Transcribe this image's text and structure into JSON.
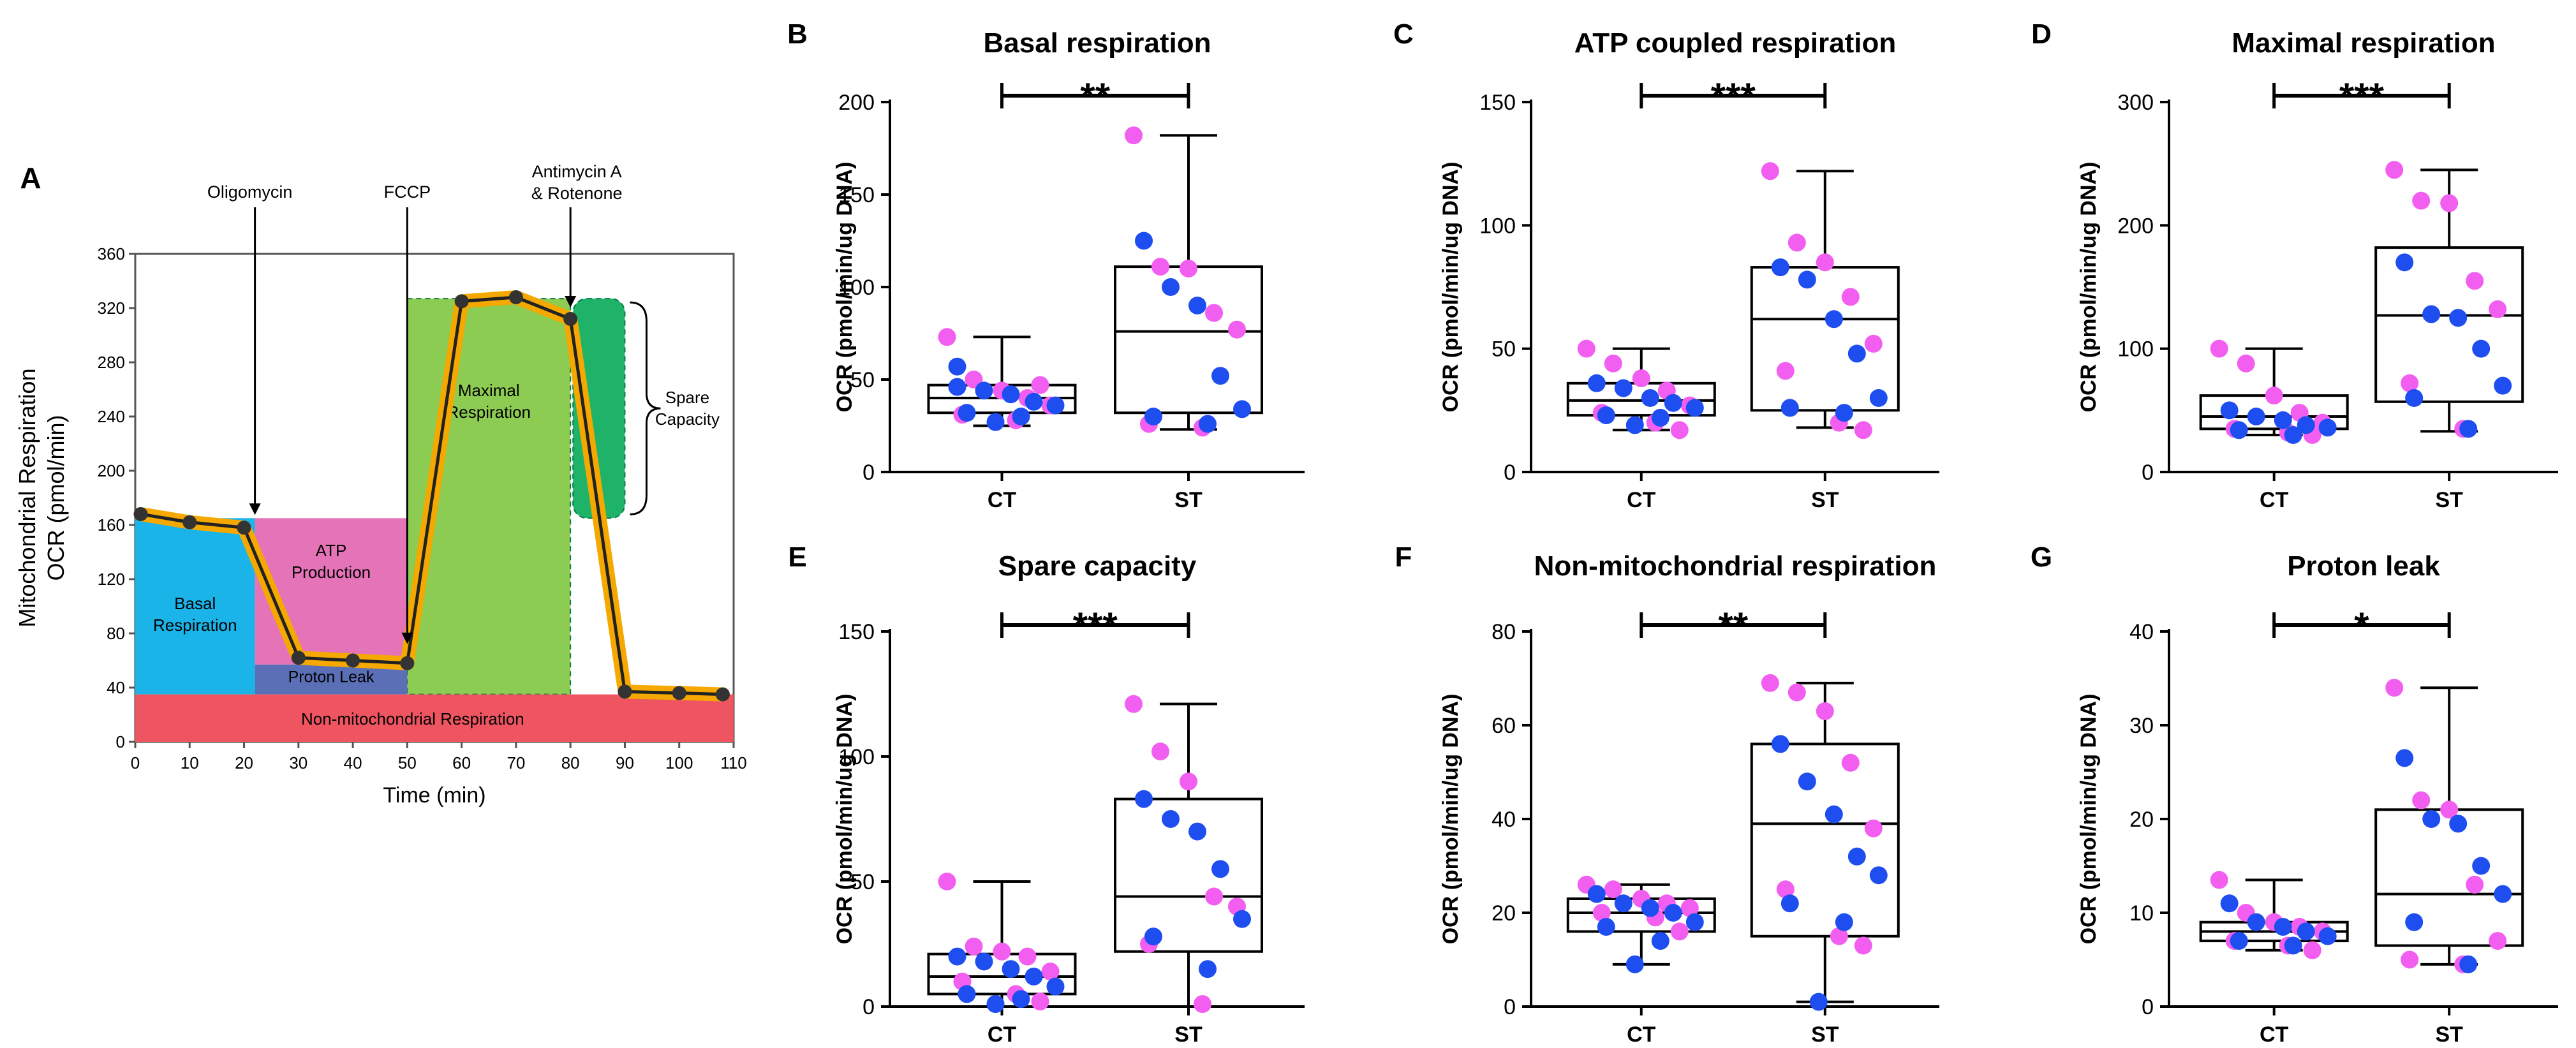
{
  "chart_data": [
    {
      "panel": "A",
      "type": "line",
      "ylabel_line1": "Mitochondrial Respiration",
      "ylabel_line2": "OCR (pmol/min)",
      "xlabel": "Time (min)",
      "xlim": [
        0,
        110
      ],
      "ylim": [
        0,
        360
      ],
      "xticks": [
        0,
        10,
        20,
        30,
        40,
        50,
        60,
        70,
        80,
        90,
        100,
        110
      ],
      "yticks": [
        0,
        40,
        80,
        120,
        160,
        200,
        240,
        280,
        320,
        360
      ],
      "x": [
        1,
        10,
        20,
        30,
        40,
        50,
        60,
        70,
        80,
        90,
        100,
        108
      ],
      "y": [
        168,
        162,
        158,
        62,
        60,
        58,
        325,
        328,
        312,
        37,
        36,
        35
      ],
      "injections": [
        {
          "label": "Oligomycin",
          "x": 22
        },
        {
          "label": "FCCP",
          "x": 50
        },
        {
          "label_line1": "Antimycin A",
          "label_line2": "& Rotenone",
          "x": 80
        }
      ],
      "regions": {
        "basal": {
          "line1": "Basal",
          "line2": "Respiration",
          "x": [
            0,
            22
          ],
          "y": [
            35,
            165
          ],
          "color": "#1ab4e8"
        },
        "atp": {
          "line1": "ATP",
          "line2": "Production",
          "x": [
            22,
            50
          ],
          "y": [
            57,
            165
          ],
          "color": "#e573b8"
        },
        "proton_leak": {
          "label": "Proton Leak",
          "x": [
            22,
            50
          ],
          "y": [
            35,
            57
          ],
          "color": "#5b6fb7"
        },
        "maximal": {
          "line1": "Maximal",
          "line2": "Respiration",
          "x": [
            50,
            80
          ],
          "y": [
            35,
            327
          ],
          "color": "#8dcc52"
        },
        "spare": {
          "line1": "Spare",
          "line2": "Capacity",
          "x": [
            80,
            90
          ],
          "y": [
            165,
            327
          ],
          "color": "#1fb36a"
        },
        "non_mito": {
          "label": "Non-mitochondrial Respiration",
          "x": [
            0,
            110
          ],
          "y": [
            0,
            35
          ],
          "color": "#ef5561"
        }
      },
      "line_color": "#f5a800"
    },
    {
      "panel": "B",
      "type": "box",
      "title": "Basal respiration",
      "ylabel": "OCR (pmol/min/ug DNA)",
      "ylim": [
        0,
        200
      ],
      "yticks": [
        0,
        50,
        100,
        150,
        200
      ],
      "categories": [
        "CT",
        "ST"
      ],
      "significance": "**",
      "box": [
        {
          "group": "CT",
          "min": 25,
          "q1": 32,
          "median": 40,
          "q3": 47,
          "max": 73
        },
        {
          "group": "ST",
          "min": 23,
          "q1": 32,
          "median": 76,
          "q3": 111,
          "max": 182
        }
      ],
      "points": [
        {
          "group": "CT",
          "blue": [
            46,
            44,
            42,
            38,
            36,
            32,
            30,
            27,
            57
          ],
          "pink": [
            73,
            50,
            44,
            40,
            36,
            31,
            28,
            47
          ]
        },
        {
          "group": "ST",
          "blue": [
            125,
            100,
            90,
            52,
            34,
            30,
            26
          ],
          "pink": [
            182,
            111,
            110,
            86,
            77,
            26,
            24
          ]
        }
      ]
    },
    {
      "panel": "C",
      "type": "box",
      "title": "ATP coupled respiration",
      "ylabel": "OCR (pmol/min/ug DNA)",
      "ylim": [
        0,
        150
      ],
      "yticks": [
        0,
        50,
        100,
        150
      ],
      "categories": [
        "CT",
        "ST"
      ],
      "significance": "***",
      "box": [
        {
          "group": "CT",
          "min": 17,
          "q1": 23,
          "median": 29,
          "q3": 36,
          "max": 50
        },
        {
          "group": "ST",
          "min": 18,
          "q1": 25,
          "median": 62,
          "q3": 83,
          "max": 122
        }
      ],
      "points": [
        {
          "group": "CT",
          "blue": [
            36,
            34,
            30,
            28,
            26,
            23,
            22,
            19
          ],
          "pink": [
            50,
            44,
            38,
            33,
            27,
            24,
            20,
            17
          ]
        },
        {
          "group": "ST",
          "blue": [
            83,
            78,
            62,
            48,
            30,
            26,
            24
          ],
          "pink": [
            122,
            93,
            85,
            71,
            52,
            41,
            20,
            17
          ]
        }
      ]
    },
    {
      "panel": "D",
      "type": "box",
      "title": "Maximal respiration",
      "ylabel": "OCR (pmol/min/ug DNA)",
      "ylim": [
        0,
        300
      ],
      "yticks": [
        0,
        100,
        200,
        300
      ],
      "categories": [
        "CT",
        "ST"
      ],
      "significance": "***",
      "box": [
        {
          "group": "CT",
          "min": 30,
          "q1": 35,
          "median": 45,
          "q3": 62,
          "max": 100
        },
        {
          "group": "ST",
          "min": 33,
          "q1": 57,
          "median": 127,
          "q3": 182,
          "max": 245
        }
      ],
      "points": [
        {
          "group": "CT",
          "blue": [
            50,
            45,
            42,
            38,
            36,
            34,
            30
          ],
          "pink": [
            100,
            88,
            62,
            48,
            40,
            35,
            32,
            30
          ]
        },
        {
          "group": "ST",
          "blue": [
            170,
            128,
            125,
            100,
            70,
            60,
            35
          ],
          "pink": [
            245,
            220,
            218,
            155,
            132,
            72,
            35
          ]
        }
      ]
    },
    {
      "panel": "E",
      "type": "box",
      "title": "Spare capacity",
      "ylabel": "OCR (pmol/min/ug DNA)",
      "ylim": [
        0,
        150
      ],
      "yticks": [
        0,
        50,
        100,
        150
      ],
      "categories": [
        "CT",
        "ST"
      ],
      "significance": "***",
      "box": [
        {
          "group": "CT",
          "min": 0,
          "q1": 5,
          "median": 12,
          "q3": 21,
          "max": 50
        },
        {
          "group": "ST",
          "min": 0,
          "q1": 22,
          "median": 44,
          "q3": 83,
          "max": 121
        }
      ],
      "points": [
        {
          "group": "CT",
          "blue": [
            20,
            18,
            15,
            12,
            8,
            5,
            3,
            1
          ],
          "pink": [
            50,
            24,
            22,
            20,
            14,
            10,
            5,
            2
          ]
        },
        {
          "group": "ST",
          "blue": [
            83,
            75,
            70,
            55,
            35,
            28,
            15
          ],
          "pink": [
            121,
            102,
            90,
            44,
            40,
            25,
            1
          ]
        }
      ]
    },
    {
      "panel": "F",
      "type": "box",
      "title": "Non-mitochondrial respiration",
      "ylabel": "OCR (pmol/min/ug DNA)",
      "ylim": [
        0,
        80
      ],
      "yticks": [
        0,
        20,
        40,
        60,
        80
      ],
      "categories": [
        "CT",
        "ST"
      ],
      "significance": "**",
      "box": [
        {
          "group": "CT",
          "min": 9,
          "q1": 16,
          "median": 20,
          "q3": 23,
          "max": 26
        },
        {
          "group": "ST",
          "min": 1,
          "q1": 15,
          "median": 39,
          "q3": 56,
          "max": 69
        }
      ],
      "points": [
        {
          "group": "CT",
          "blue": [
            24,
            22,
            21,
            20,
            18,
            17,
            14,
            9
          ],
          "pink": [
            26,
            25,
            23,
            22,
            21,
            20,
            19,
            16
          ]
        },
        {
          "group": "ST",
          "blue": [
            56,
            48,
            41,
            32,
            28,
            22,
            18,
            1
          ],
          "pink": [
            69,
            67,
            63,
            52,
            38,
            25,
            15,
            13
          ]
        }
      ]
    },
    {
      "panel": "G",
      "type": "box",
      "title": "Proton leak",
      "ylabel": "OCR (pmol/min/ug DNA)",
      "ylim": [
        0,
        40
      ],
      "yticks": [
        0,
        10,
        20,
        30,
        40
      ],
      "categories": [
        "CT",
        "ST"
      ],
      "significance": "*",
      "box": [
        {
          "group": "CT",
          "min": 6,
          "q1": 7,
          "median": 8,
          "q3": 9,
          "max": 13.5
        },
        {
          "group": "ST",
          "min": 4.5,
          "q1": 6.5,
          "median": 12,
          "q3": 21,
          "max": 34
        }
      ],
      "points": [
        {
          "group": "CT",
          "blue": [
            11,
            9,
            8.5,
            8,
            7.5,
            7,
            6.5
          ],
          "pink": [
            13.5,
            10,
            9,
            8.5,
            8,
            7,
            6.5,
            6
          ]
        },
        {
          "group": "ST",
          "blue": [
            26.5,
            20,
            19.5,
            15,
            12,
            9,
            4.5
          ],
          "pink": [
            34,
            22,
            21,
            13,
            7,
            5,
            4.5
          ]
        }
      ]
    }
  ]
}
